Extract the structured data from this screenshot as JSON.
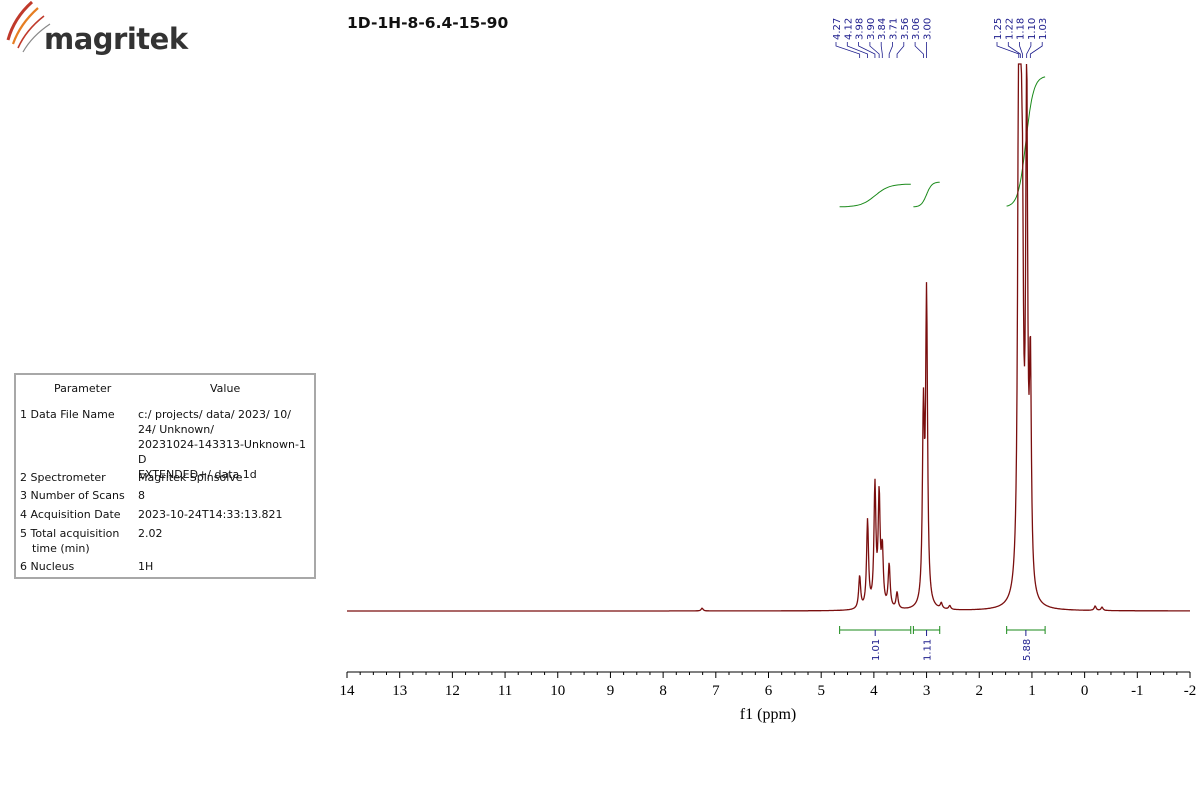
{
  "brand": {
    "name": "magritek"
  },
  "chart_data": {
    "type": "line",
    "title": "1D-1H-8-6.4-15-90",
    "xlabel": "f1 (ppm)",
    "xlim": [
      14,
      -2
    ],
    "x_reversed": true,
    "x_ticks": [
      "14",
      "13",
      "12",
      "11",
      "10",
      "9",
      "8",
      "7",
      "6",
      "5",
      "4",
      "3",
      "2",
      "1",
      "0",
      "-1",
      "-2"
    ],
    "line_color": "#7a0e0e",
    "integral_color": "#1a8a1a",
    "label_color": "#1c1c8c",
    "baseline_intensity": 0.0,
    "max_intensity": 1.0,
    "series": [
      {
        "peaks_ppm_height": [
          [
            4.27,
            0.06
          ],
          [
            4.12,
            0.16
          ],
          [
            3.98,
            0.22
          ],
          [
            3.9,
            0.2
          ],
          [
            3.84,
            0.1
          ],
          [
            3.71,
            0.08
          ],
          [
            3.56,
            0.03
          ],
          [
            3.06,
            0.34
          ],
          [
            3.0,
            0.56
          ],
          [
            1.25,
            0.86
          ],
          [
            1.22,
            1.0
          ],
          [
            1.18,
            0.5
          ],
          [
            1.1,
            0.92
          ],
          [
            1.03,
            0.4
          ],
          [
            7.26,
            0.005
          ],
          [
            2.72,
            0.01
          ],
          [
            2.56,
            0.007
          ],
          [
            -0.2,
            0.008
          ],
          [
            -0.33,
            0.006
          ]
        ]
      }
    ],
    "peak_labels": [
      "4.27",
      "4.12",
      "3.98",
      "3.90",
      "3.84",
      "3.71",
      "3.56",
      "3.06",
      "3.00",
      "1.25",
      "1.22",
      "1.18",
      "1.10",
      "1.03"
    ],
    "integrals": [
      {
        "from": 4.65,
        "to": 3.3,
        "value": "1.01"
      },
      {
        "from": 3.25,
        "to": 2.75,
        "value": "1.11"
      },
      {
        "from": 1.48,
        "to": 0.75,
        "value": "5.88"
      }
    ]
  },
  "parameters": {
    "header_param": "Parameter",
    "header_value": "Value",
    "rows": [
      {
        "name": "1 Data File Name",
        "value_lines": [
          "c:/ projects/ data/ 2023/ 10/",
          "24/ Unknown/",
          "20231024-143313-Unknown-1D",
          "EXTENDED+/ data.1d"
        ]
      },
      {
        "name": "2 Spectrometer",
        "value_lines": [
          "Magritek Spinsolve"
        ]
      },
      {
        "name": "3 Number of Scans",
        "value_lines": [
          "8"
        ]
      },
      {
        "name": "4 Acquisition Date",
        "value_lines": [
          "2023-10-24T14:33:13.821"
        ]
      },
      {
        "name_lines": [
          "5 Total acquisition",
          "time (min)"
        ],
        "value_lines": [
          "2.02"
        ]
      },
      {
        "name": "6 Nucleus",
        "value_lines": [
          "1H"
        ]
      }
    ]
  }
}
